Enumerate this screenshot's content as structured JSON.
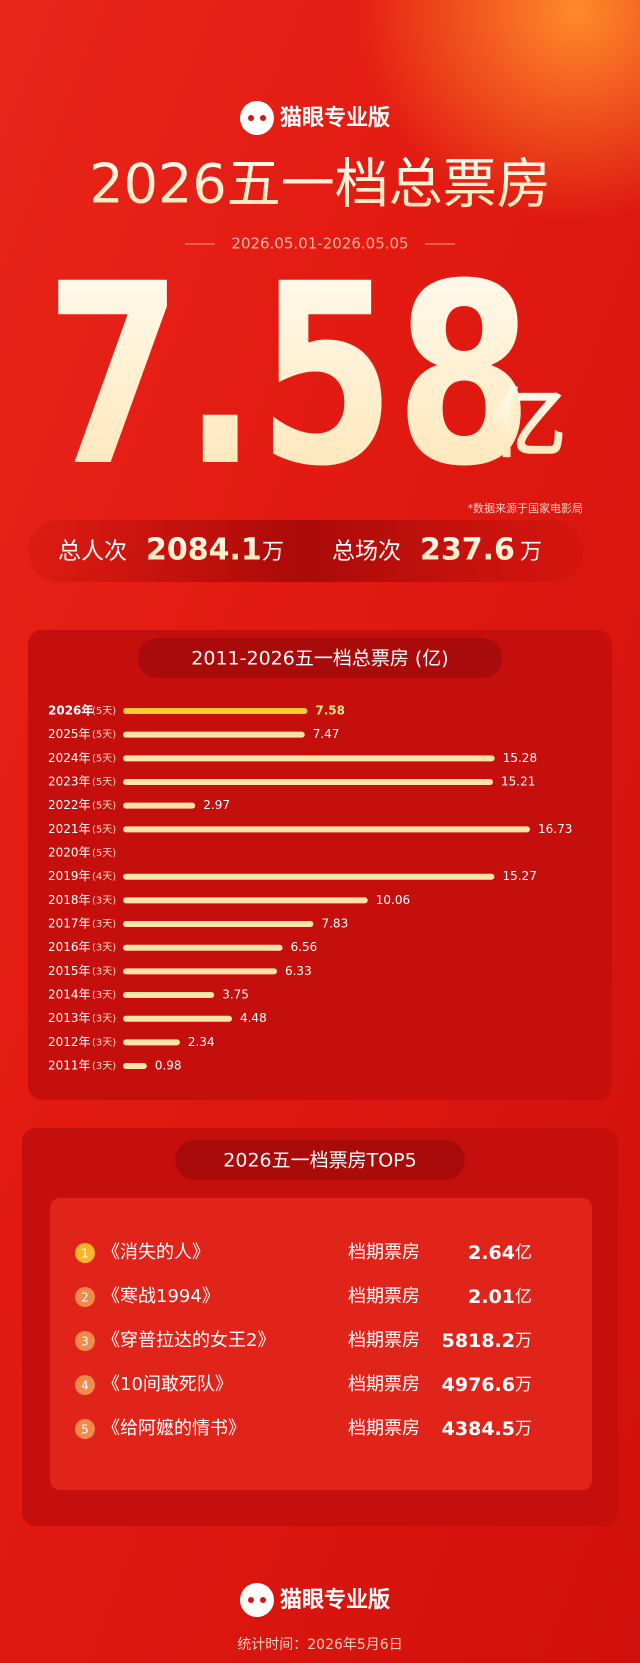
{
  "header": {
    "logo": "猫眼专业版",
    "title": "2026五一档总票房",
    "date_range": "2026.05.01-2026.05.05"
  },
  "total": {
    "value": 7.58,
    "unit": "亿",
    "source": "*数据来源于国家电影局"
  },
  "stats": [
    {
      "label": "总人次",
      "value": 2084.1,
      "unit": "万"
    },
    {
      "label": "总场次",
      "value": 237.6,
      "unit": "万"
    }
  ],
  "chart_data": {
    "type": "bar",
    "orientation": "horizontal",
    "title": "2011-2026五一档总票房 (亿)",
    "categories": [
      "2026年",
      "2025年",
      "2024年",
      "2023年",
      "2022年",
      "2021年",
      "2020年",
      "2019年",
      "2018年",
      "2017年",
      "2016年",
      "2015年",
      "2014年",
      "2013年",
      "2012年",
      "2011年"
    ],
    "days": [
      "(5天)",
      "(5天)",
      "(5天)",
      "(5天)",
      "(5天)",
      "(5天)",
      "(5天)",
      "(4天)",
      "(3天)",
      "(3天)",
      "(3天)",
      "(3天)",
      "(3天)",
      "(3天)",
      "(3天)",
      "(3天)"
    ],
    "values": [
      7.58,
      7.47,
      15.28,
      15.21,
      2.97,
      16.73,
      null,
      15.27,
      10.06,
      7.83,
      6.56,
      6.33,
      3.75,
      4.48,
      2.34,
      0.98
    ],
    "colors": [
      "#ffc933",
      "#ffe2a8",
      "#ffe2a8",
      "#ffe2a8",
      "#ffe2a8",
      "#ffe2a8",
      "#ffe2a8",
      "#ffe2a8",
      "#ffe2a8",
      "#ffe2a8",
      "#ffe2a8",
      "#ffe2a8",
      "#ffe2a8",
      "#ffe2a8",
      "#ffe2a8",
      "#ffe2a8"
    ]
  },
  "top5": {
    "title": "2026五一档票房TOP5",
    "rows": [
      {
        "rank": 1,
        "film": "《消失的人》",
        "label": "档期票房",
        "value": 2.64,
        "unit": "亿"
      },
      {
        "rank": 2,
        "film": "《寒战1994》",
        "label": "档期票房",
        "value": 2.01,
        "unit": "亿"
      },
      {
        "rank": 3,
        "film": "《穿普拉达的女王2》",
        "label": "档期票房",
        "value": 5818.2,
        "unit": "万"
      },
      {
        "rank": 4,
        "film": "《10间敢死队》",
        "label": "档期票房",
        "value": 4976.6,
        "unit": "万"
      },
      {
        "rank": 5,
        "film": "《给阿嬷的情书》",
        "label": "档期票房",
        "value": 4384.5,
        "unit": "万"
      }
    ]
  },
  "footer": {
    "logo": "猫眼专业版",
    "stat_time": "统计时间：2026年5月6日"
  }
}
